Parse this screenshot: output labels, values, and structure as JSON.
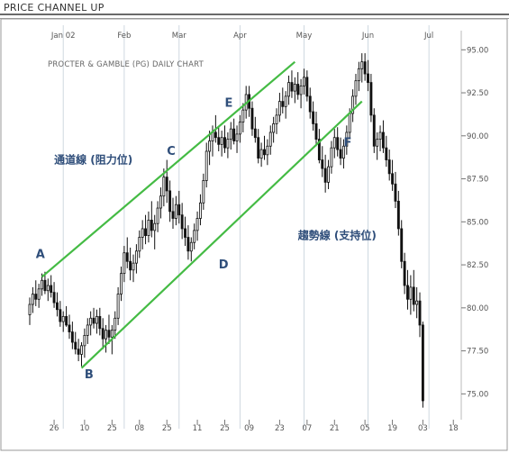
{
  "window": {
    "title": "PRICE CHANNEL UP"
  },
  "colors": {
    "candle": "#111111",
    "channel": "#44bb44",
    "grid": "#cfd8e0",
    "label": "#2f4e7a",
    "axis_text": "#555555"
  },
  "chart_data": {
    "type": "candlestick",
    "subtitle": "PROCTER & GAMBLE (PG) DAILY CHART",
    "y_ticks": [
      75.0,
      77.5,
      80.0,
      82.5,
      85.0,
      87.5,
      90.0,
      92.5,
      95.0
    ],
    "y_tick_labels": [
      "75.00",
      "77.50",
      "80.00",
      "82.50",
      "85.00",
      "87.50",
      "90.00",
      "92.50",
      "95.00"
    ],
    "ylim": [
      73.5,
      95.8
    ],
    "x_range": [
      0,
      141
    ],
    "month_labels": [
      {
        "label": "Jan 02",
        "x": 11
      },
      {
        "label": "Feb",
        "x": 31
      },
      {
        "label": "Mar",
        "x": 49
      },
      {
        "label": "Apr",
        "x": 69
      },
      {
        "label": "May",
        "x": 90
      },
      {
        "label": "Jun",
        "x": 111
      },
      {
        "label": "Jul",
        "x": 131
      }
    ],
    "day_labels": [
      {
        "label": "26",
        "x": 8
      },
      {
        "label": "10",
        "x": 18
      },
      {
        "label": "25",
        "x": 27
      },
      {
        "label": "08",
        "x": 36
      },
      {
        "label": "25",
        "x": 45
      },
      {
        "label": "11",
        "x": 55
      },
      {
        "label": "25",
        "x": 64
      },
      {
        "label": "09",
        "x": 72
      },
      {
        "label": "23",
        "x": 82
      },
      {
        "label": "07",
        "x": 91
      },
      {
        "label": "21",
        "x": 100
      },
      {
        "label": "05",
        "x": 110
      },
      {
        "label": "19",
        "x": 119
      },
      {
        "label": "03",
        "x": 129
      },
      {
        "label": "18",
        "x": 139
      }
    ],
    "vertical_grid_x": [
      11,
      31,
      49,
      69,
      90,
      111,
      131
    ],
    "channel_lines": [
      {
        "name": "upper",
        "x1": 4,
        "y1": 81.8,
        "x2": 87,
        "y2": 94.3
      },
      {
        "name": "lower",
        "x1": 17,
        "y1": 76.5,
        "x2": 109,
        "y2": 92.0
      }
    ],
    "annotations": [
      {
        "text": "A",
        "x": 2,
        "y": 82.9
      },
      {
        "text": "B",
        "x": 18,
        "y": 75.9
      },
      {
        "text": "C",
        "x": 45,
        "y": 88.9
      },
      {
        "text": "D",
        "x": 62,
        "y": 82.3
      },
      {
        "text": "E",
        "x": 64,
        "y": 91.7
      },
      {
        "text": "F",
        "x": 103,
        "y": 89.4
      },
      {
        "text": "通道線 (阻力位)",
        "x": 8,
        "y": 88.4
      },
      {
        "text": "趨勢線 (支持位)",
        "x": 88,
        "y": 84.0
      }
    ],
    "candles": [
      [
        0,
        79.6,
        80.6,
        79.0,
        80.2
      ],
      [
        1,
        80.2,
        81.2,
        79.7,
        80.8
      ],
      [
        2,
        80.8,
        81.6,
        80.1,
        80.5
      ],
      [
        3,
        80.5,
        81.4,
        80.0,
        81.1
      ],
      [
        4,
        81.1,
        82.0,
        80.7,
        81.6
      ],
      [
        5,
        81.6,
        82.1,
        80.8,
        81.0
      ],
      [
        6,
        81.0,
        81.7,
        80.4,
        81.3
      ],
      [
        7,
        81.3,
        81.9,
        80.6,
        80.9
      ],
      [
        8,
        80.9,
        81.5,
        80.0,
        80.3
      ],
      [
        9,
        80.3,
        80.9,
        79.5,
        79.9
      ],
      [
        10,
        79.9,
        80.4,
        78.9,
        79.2
      ],
      [
        11,
        79.2,
        79.8,
        78.6,
        79.5
      ],
      [
        12,
        79.5,
        80.1,
        78.9,
        79.0
      ],
      [
        13,
        79.0,
        79.6,
        78.2,
        78.6
      ],
      [
        14,
        78.6,
        79.2,
        77.6,
        78.0
      ],
      [
        15,
        78.0,
        78.6,
        77.3,
        77.6
      ],
      [
        16,
        77.6,
        78.2,
        76.9,
        77.3
      ],
      [
        17,
        77.3,
        78.0,
        76.6,
        77.8
      ],
      [
        18,
        77.8,
        78.8,
        77.1,
        78.4
      ],
      [
        19,
        78.4,
        79.4,
        77.9,
        79.0
      ],
      [
        20,
        79.0,
        79.8,
        78.4,
        79.4
      ],
      [
        21,
        79.4,
        80.0,
        78.8,
        79.1
      ],
      [
        22,
        79.1,
        79.9,
        78.5,
        79.5
      ],
      [
        23,
        79.5,
        80.0,
        78.4,
        78.8
      ],
      [
        24,
        78.8,
        79.4,
        77.6,
        78.2
      ],
      [
        25,
        78.2,
        79.0,
        77.4,
        78.7
      ],
      [
        26,
        78.7,
        79.6,
        77.9,
        78.3
      ],
      [
        27,
        78.3,
        79.0,
        77.3,
        78.7
      ],
      [
        28,
        78.7,
        79.8,
        78.2,
        79.4
      ],
      [
        29,
        79.4,
        81.2,
        79.0,
        80.8
      ],
      [
        30,
        80.8,
        82.4,
        80.4,
        82.0
      ],
      [
        31,
        82.0,
        83.6,
        81.5,
        83.2
      ],
      [
        32,
        83.2,
        84.1,
        82.3,
        82.7
      ],
      [
        33,
        82.7,
        83.5,
        81.6,
        82.2
      ],
      [
        34,
        82.2,
        83.1,
        81.5,
        82.6
      ],
      [
        35,
        82.6,
        83.7,
        82.0,
        83.3
      ],
      [
        36,
        83.3,
        84.5,
        82.9,
        84.1
      ],
      [
        37,
        84.1,
        85.1,
        83.4,
        84.6
      ],
      [
        38,
        84.6,
        85.4,
        83.7,
        84.2
      ],
      [
        39,
        84.2,
        85.6,
        83.8,
        85.1
      ],
      [
        40,
        85.1,
        86.2,
        84.1,
        84.5
      ],
      [
        41,
        84.5,
        85.4,
        83.4,
        84.9
      ],
      [
        42,
        84.9,
        86.2,
        84.4,
        85.8
      ],
      [
        43,
        85.8,
        87.0,
        85.2,
        86.5
      ],
      [
        44,
        86.5,
        88.1,
        85.9,
        87.6
      ],
      [
        45,
        87.6,
        88.6,
        86.1,
        86.8
      ],
      [
        46,
        86.8,
        87.4,
        85.0,
        85.6
      ],
      [
        47,
        85.6,
        86.4,
        84.6,
        85.2
      ],
      [
        48,
        85.2,
        86.5,
        84.8,
        86.0
      ],
      [
        49,
        86.0,
        86.8,
        84.9,
        85.4
      ],
      [
        50,
        85.4,
        86.1,
        84.0,
        84.6
      ],
      [
        51,
        84.6,
        85.3,
        83.6,
        84.1
      ],
      [
        52,
        84.1,
        84.8,
        82.8,
        83.3
      ],
      [
        53,
        83.3,
        84.1,
        82.7,
        83.8
      ],
      [
        54,
        83.8,
        84.9,
        83.4,
        84.5
      ],
      [
        55,
        84.5,
        85.6,
        83.9,
        85.2
      ],
      [
        56,
        85.2,
        86.6,
        84.8,
        86.1
      ],
      [
        57,
        86.1,
        87.8,
        85.7,
        87.4
      ],
      [
        58,
        87.4,
        89.6,
        87.0,
        89.1
      ],
      [
        59,
        89.1,
        90.3,
        88.3,
        89.7
      ],
      [
        60,
        89.7,
        90.6,
        88.8,
        90.2
      ],
      [
        61,
        90.2,
        91.2,
        89.6,
        89.9
      ],
      [
        62,
        89.9,
        90.5,
        89.1,
        89.5
      ],
      [
        63,
        89.5,
        90.3,
        88.8,
        89.9
      ],
      [
        64,
        89.9,
        90.6,
        89.0,
        89.3
      ],
      [
        65,
        89.3,
        90.2,
        88.7,
        89.8
      ],
      [
        66,
        89.8,
        90.8,
        89.2,
        90.4
      ],
      [
        67,
        90.4,
        91.0,
        89.5,
        89.7
      ],
      [
        68,
        89.7,
        90.6,
        89.0,
        90.1
      ],
      [
        69,
        90.1,
        91.2,
        89.6,
        90.8
      ],
      [
        70,
        90.8,
        91.9,
        90.2,
        91.5
      ],
      [
        71,
        91.5,
        92.9,
        91.0,
        92.4
      ],
      [
        72,
        92.4,
        92.9,
        91.1,
        91.6
      ],
      [
        73,
        91.6,
        92.0,
        90.0,
        90.4
      ],
      [
        74,
        90.4,
        91.1,
        89.6,
        89.9
      ],
      [
        75,
        89.9,
        90.4,
        88.4,
        88.7
      ],
      [
        76,
        88.7,
        89.6,
        88.2,
        89.2
      ],
      [
        77,
        89.2,
        90.0,
        88.6,
        88.9
      ],
      [
        78,
        88.9,
        89.8,
        88.3,
        89.4
      ],
      [
        79,
        89.4,
        90.6,
        88.9,
        90.2
      ],
      [
        80,
        90.2,
        91.1,
        89.6,
        90.7
      ],
      [
        81,
        90.7,
        91.6,
        90.1,
        91.2
      ],
      [
        82,
        91.2,
        92.5,
        90.8,
        92.0
      ],
      [
        83,
        92.0,
        92.8,
        91.3,
        91.7
      ],
      [
        84,
        91.7,
        92.6,
        91.0,
        92.3
      ],
      [
        85,
        92.3,
        93.5,
        91.8,
        93.1
      ],
      [
        86,
        93.1,
        93.8,
        92.2,
        92.6
      ],
      [
        87,
        92.6,
        93.4,
        91.9,
        93.0
      ],
      [
        88,
        93.0,
        93.7,
        92.1,
        92.4
      ],
      [
        89,
        92.4,
        93.3,
        91.6,
        92.9
      ],
      [
        90,
        92.9,
        93.9,
        92.4,
        93.4
      ],
      [
        91,
        93.4,
        93.8,
        92.0,
        92.3
      ],
      [
        92,
        92.3,
        92.8,
        91.0,
        91.4
      ],
      [
        93,
        91.4,
        92.0,
        90.3,
        90.7
      ],
      [
        94,
        90.7,
        91.4,
        89.4,
        89.8
      ],
      [
        95,
        89.8,
        90.4,
        88.4,
        88.6
      ],
      [
        96,
        88.6,
        89.4,
        87.6,
        88.1
      ],
      [
        97,
        88.1,
        88.9,
        86.7,
        87.3
      ],
      [
        98,
        87.3,
        88.6,
        86.9,
        88.2
      ],
      [
        99,
        88.2,
        89.7,
        87.8,
        89.3
      ],
      [
        100,
        89.3,
        90.4,
        88.7,
        89.9
      ],
      [
        101,
        89.9,
        90.5,
        88.8,
        89.2
      ],
      [
        102,
        89.2,
        89.9,
        88.3,
        88.7
      ],
      [
        103,
        88.7,
        89.8,
        88.1,
        89.4
      ],
      [
        104,
        89.4,
        90.6,
        88.9,
        90.2
      ],
      [
        105,
        90.2,
        91.6,
        89.8,
        91.3
      ],
      [
        106,
        91.3,
        92.7,
        90.8,
        92.3
      ],
      [
        107,
        92.3,
        93.6,
        91.8,
        93.2
      ],
      [
        108,
        93.2,
        94.3,
        92.6,
        93.9
      ],
      [
        109,
        93.9,
        94.8,
        93.1,
        94.3
      ],
      [
        110,
        94.3,
        94.8,
        93.2,
        93.6
      ],
      [
        111,
        93.6,
        94.4,
        92.6,
        93.1
      ],
      [
        112,
        93.1,
        93.6,
        90.8,
        91.2
      ],
      [
        113,
        91.2,
        91.6,
        89.0,
        89.4
      ],
      [
        114,
        89.4,
        90.2,
        88.6,
        89.8
      ],
      [
        115,
        89.8,
        90.6,
        89.1,
        90.2
      ],
      [
        116,
        90.2,
        90.9,
        89.0,
        89.3
      ],
      [
        117,
        89.3,
        90.0,
        88.2,
        88.6
      ],
      [
        118,
        88.6,
        89.2,
        87.4,
        87.8
      ],
      [
        119,
        87.8,
        88.6,
        86.8,
        87.2
      ],
      [
        120,
        87.2,
        87.9,
        85.8,
        86.2
      ],
      [
        121,
        86.2,
        86.8,
        84.2,
        84.6
      ],
      [
        122,
        84.6,
        85.1,
        82.3,
        82.7
      ],
      [
        123,
        82.7,
        83.2,
        80.8,
        81.3
      ],
      [
        124,
        81.3,
        82.2,
        79.9,
        80.5
      ],
      [
        125,
        80.5,
        81.9,
        79.6,
        81.2
      ],
      [
        126,
        81.2,
        82.2,
        79.8,
        80.2
      ],
      [
        127,
        80.2,
        81.2,
        79.4,
        80.4
      ],
      [
        128,
        80.4,
        80.9,
        78.3,
        79.0
      ],
      [
        129,
        79.0,
        79.2,
        74.2,
        74.6
      ]
    ]
  }
}
